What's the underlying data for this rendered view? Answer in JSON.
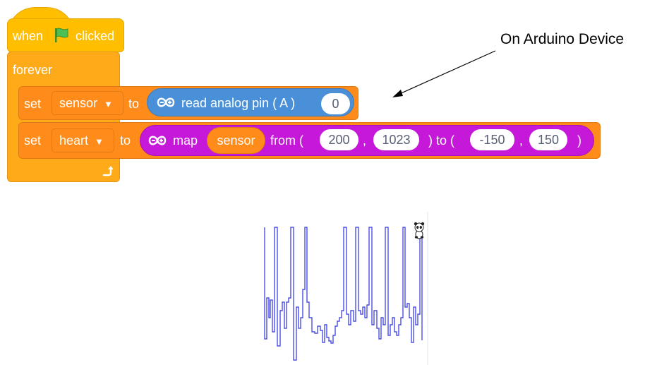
{
  "hat": {
    "when": "when",
    "flag_icon": "green-flag-icon",
    "clicked": "clicked"
  },
  "forever": {
    "label": "forever"
  },
  "set_sensor": {
    "set": "set",
    "variable": "sensor",
    "to": "to",
    "read": "read analog pin ( A )",
    "pin": "0"
  },
  "set_heart": {
    "set": "set",
    "variable": "heart",
    "to": "to",
    "map": "map",
    "input": "sensor",
    "from": "from (",
    "from_low": "200",
    "comma1": ",",
    "from_high": "1023",
    "to_open": ") to (",
    "to_low": "-150",
    "comma2": ",",
    "to_high": "150",
    "close": ")"
  },
  "annotation": {
    "text": "On Arduino Device"
  },
  "colors": {
    "hat": "#ffbf00",
    "control": "#ffab19",
    "variable": "#ff8c1a",
    "arduino": "#4a90d9",
    "map": "#c518d8",
    "trace": "#4b4ee6"
  }
}
